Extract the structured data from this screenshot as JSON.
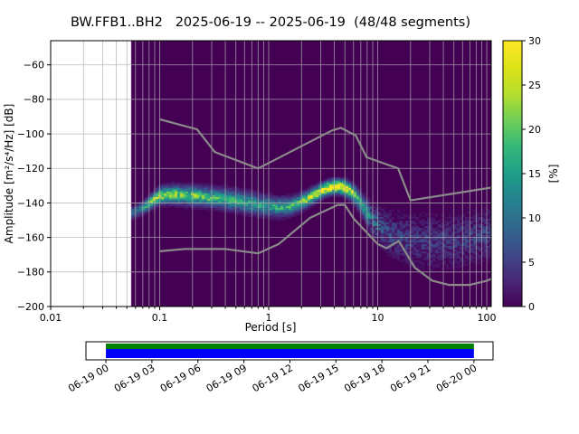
{
  "chart_data": {
    "type": "heatmap",
    "title": "BW.FFB1..BH2   2025-06-19 -- 2025-06-19  (48/48 segments)",
    "xlabel": "Period [s]",
    "ylabel": "Amplitude [m²/s⁴/Hz] [dB]",
    "x_scale": "log",
    "xlim": [
      0.01,
      110
    ],
    "ylim": [
      -200,
      -46
    ],
    "grid": true,
    "x_ticks": [
      0.01,
      0.1,
      1,
      10,
      100
    ],
    "x_tick_labels": [
      "0.01",
      "0.1",
      "1",
      "10",
      "100"
    ],
    "y_ticks": [
      -200,
      -180,
      -160,
      -140,
      -120,
      -100,
      -80,
      -60
    ],
    "y_tick_labels": [
      "−200",
      "−180",
      "−160",
      "−140",
      "−120",
      "−100",
      "−80",
      "−60"
    ],
    "colorbar": {
      "label": "[%]",
      "min": 0,
      "max": 30,
      "ticks": [
        0,
        5,
        10,
        15,
        20,
        25,
        30
      ],
      "tick_labels": [
        "0",
        "5",
        "10",
        "15",
        "20",
        "25",
        "30"
      ],
      "colormap": "viridis"
    },
    "histogram": {
      "period_range": [
        0.055,
        110
      ],
      "background_percent": 0,
      "mode_curve": {
        "periods": [
          0.055,
          0.07,
          0.085,
          0.1,
          0.13,
          0.2,
          0.3,
          0.5,
          0.8,
          1.2,
          1.6,
          2.0,
          2.6,
          3.3,
          4.0,
          5.0,
          6.0,
          7.0,
          8.5,
          10,
          12,
          15,
          20,
          30,
          50,
          80,
          110
        ],
        "db": [
          -146,
          -143,
          -139,
          -136,
          -135,
          -135.8,
          -136.8,
          -138.5,
          -141,
          -142.5,
          -142,
          -139.5,
          -135.5,
          -132,
          -130.3,
          -131,
          -134.5,
          -140,
          -148,
          -153,
          -157,
          -159.5,
          -161.5,
          -162.5,
          -162.5,
          -160,
          -157.5
        ],
        "percent": [
          8,
          12,
          18,
          22,
          20,
          18,
          17,
          15,
          13,
          14,
          15,
          18,
          22,
          27,
          30,
          28,
          20,
          14,
          11,
          9,
          7,
          6,
          5,
          4.5,
          4.5,
          5,
          5.5
        ],
        "spread_db": [
          2,
          2.2,
          2.5,
          2.8,
          3,
          3.2,
          3.2,
          3.4,
          3.5,
          3.2,
          3,
          2.8,
          2.6,
          2.4,
          2.3,
          2.5,
          3,
          3.5,
          4.5,
          5.5,
          6.5,
          7.5,
          8.5,
          9,
          9,
          8.5,
          8
        ]
      }
    },
    "noise_models": {
      "color": "#8a8a8a",
      "high": {
        "periods": [
          0.1,
          0.22,
          0.32,
          0.8,
          3.8,
          4.6,
          6.3,
          7.9,
          15.4,
          20,
          110
        ],
        "db": [
          -91.5,
          -97.4,
          -110.5,
          -120,
          -98,
          -96.5,
          -101,
          -113.5,
          -120,
          -138.5,
          -131.1
        ]
      },
      "low": {
        "periods": [
          0.1,
          0.17,
          0.4,
          0.8,
          1.24,
          2.4,
          4.3,
          5,
          6,
          10,
          12,
          15.6,
          21.9,
          31.6,
          45,
          70,
          101,
          110
        ],
        "db": [
          -168,
          -166.7,
          -166.7,
          -169.2,
          -163.7,
          -148.6,
          -141.1,
          -141.1,
          -149,
          -163.8,
          -166.2,
          -162.1,
          -177.5,
          -185,
          -187.5,
          -187.5,
          -185,
          -183.9
        ]
      }
    },
    "coverage": {
      "time_tick_labels": [
        "06-19 00",
        "06-19 03",
        "06-19 06",
        "06-19 09",
        "06-19 12",
        "06-19 15",
        "06-19 18",
        "06-19 21",
        "06-20 00"
      ],
      "data_start_frac": 0.049,
      "data_end_frac": 0.953,
      "range_color": "#008000",
      "segment_color": "#0000ff"
    }
  }
}
